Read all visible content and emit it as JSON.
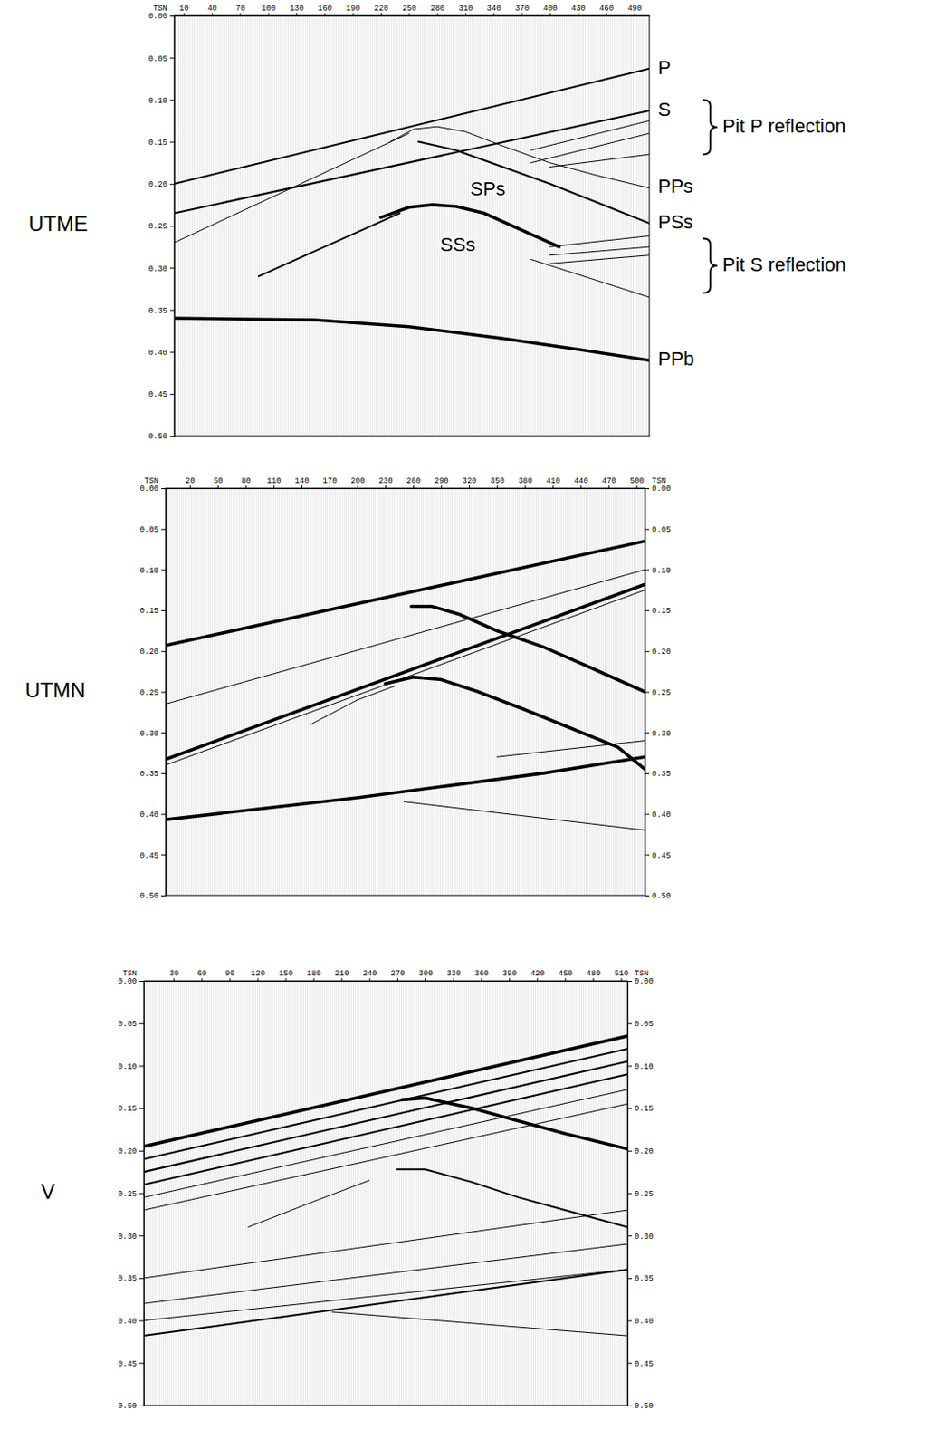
{
  "chart_data": [
    {
      "type": "line",
      "title": "UTME",
      "xlabel": "TSN",
      "color": "#000000",
      "xlim": [
        0,
        506
      ],
      "xticks": [
        10,
        40,
        70,
        100,
        130,
        160,
        190,
        220,
        250,
        280,
        310,
        340,
        370,
        400,
        430,
        460,
        490
      ],
      "ylim": [
        0,
        0.5
      ],
      "yticks": [
        {
          "value": 0,
          "label": "0.00"
        },
        {
          "value": 0.05,
          "label": "0.05"
        },
        {
          "value": 0.1,
          "label": "0.10"
        },
        {
          "value": 0.15,
          "label": "0.15"
        },
        {
          "value": 0.2,
          "label": "0.20"
        },
        {
          "value": 0.25,
          "label": "0.25"
        },
        {
          "value": 0.3,
          "label": "0.30"
        },
        {
          "value": 0.35,
          "label": "0.35"
        },
        {
          "value": 0.4,
          "label": "0.40"
        },
        {
          "value": 0.45,
          "label": "0.45"
        },
        {
          "value": 0.5,
          "label": "0.50"
        }
      ],
      "series": [
        {
          "name": "P",
          "line_style": "medium",
          "x": [
            0,
            506
          ],
          "values": [
            0.2,
            0.063
          ]
        },
        {
          "name": "S",
          "line_style": "medium",
          "x": [
            0,
            506
          ],
          "values": [
            0.235,
            0.113
          ]
        },
        {
          "line_style": "thin",
          "x": [
            380,
            506
          ],
          "values": [
            0.16,
            0.125
          ]
        },
        {
          "line_style": "thin",
          "x": [
            380,
            506
          ],
          "values": [
            0.175,
            0.14
          ]
        },
        {
          "line_style": "thin",
          "x": [
            400,
            506
          ],
          "values": [
            0.18,
            0.165
          ]
        },
        {
          "name": "PPs",
          "line_style": "thin",
          "x": [
            230,
            255,
            280,
            310,
            350,
            400,
            450,
            506
          ],
          "values": [
            0.15,
            0.135,
            0.132,
            0.138,
            0.155,
            0.175,
            0.19,
            0.205
          ]
        },
        {
          "name": "PSs",
          "line_style": "medium",
          "x": [
            260,
            300,
            350,
            400,
            450,
            506
          ],
          "values": [
            0.15,
            0.16,
            0.18,
            0.2,
            0.222,
            0.247
          ]
        },
        {
          "line_style": "thick",
          "x": [
            220,
            250,
            275,
            300,
            330,
            370,
            410
          ],
          "values": [
            0.24,
            0.228,
            0.225,
            0.227,
            0.235,
            0.255,
            0.275
          ]
        },
        {
          "line_style": "medium",
          "x": [
            90,
            150,
            200,
            240
          ],
          "values": [
            0.31,
            0.28,
            0.255,
            0.235
          ]
        },
        {
          "line_style": "thin",
          "x": [
            0,
            250
          ],
          "values": [
            0.27,
            0.14
          ]
        },
        {
          "line_style": "thin",
          "x": [
            380,
            506
          ],
          "values": [
            0.29,
            0.335
          ]
        },
        {
          "line_style": "thin",
          "x": [
            400,
            506
          ],
          "values": [
            0.275,
            0.262
          ]
        },
        {
          "line_style": "thin",
          "x": [
            400,
            506
          ],
          "values": [
            0.285,
            0.275
          ]
        },
        {
          "line_style": "thin",
          "x": [
            400,
            506
          ],
          "values": [
            0.295,
            0.285
          ]
        },
        {
          "name": "PPb",
          "line_style": "thick",
          "x": [
            0,
            150,
            250,
            350,
            430,
            506
          ],
          "values": [
            0.36,
            0.362,
            0.37,
            0.384,
            0.397,
            0.41
          ]
        }
      ],
      "annotations": [
        {
          "text": "SPs",
          "x": 334,
          "y": 0.208
        },
        {
          "text": "SSs",
          "x": 302,
          "y": 0.274
        }
      ],
      "brackets": [
        {
          "text": "Pit P reflection",
          "y": [
            0.1,
            0.165
          ]
        },
        {
          "text": "Pit S reflection",
          "y": [
            0.265,
            0.33
          ]
        }
      ]
    },
    {
      "type": "line",
      "title": "UTMN",
      "xlabel": "TSN",
      "color": "#000000",
      "xlim": [
        -6,
        509
      ],
      "xticks": [
        20,
        50,
        80,
        110,
        140,
        170,
        200,
        230,
        260,
        290,
        320,
        350,
        380,
        410,
        440,
        470,
        500
      ],
      "ylim": [
        0,
        0.5
      ],
      "yticks": [
        {
          "value": 0,
          "label": "0.00"
        },
        {
          "value": 0.05,
          "label": "0.05"
        },
        {
          "value": 0.1,
          "label": "0.10"
        },
        {
          "value": 0.15,
          "label": "0.15"
        },
        {
          "value": 0.2,
          "label": "0.20"
        },
        {
          "value": 0.25,
          "label": "0.25"
        },
        {
          "value": 0.3,
          "label": "0.30"
        },
        {
          "value": 0.35,
          "label": "0.35"
        },
        {
          "value": 0.4,
          "label": "0.40"
        },
        {
          "value": 0.45,
          "label": "0.45"
        },
        {
          "value": 0.5,
          "label": "0.50"
        }
      ],
      "y2lim": [
        0,
        0.5
      ],
      "y2ticks": [
        {
          "value": 0,
          "label": "0.00"
        },
        {
          "value": 0.05,
          "label": "0.05"
        },
        {
          "value": 0.1,
          "label": "0.10"
        },
        {
          "value": 0.15,
          "label": "0.15"
        },
        {
          "value": 0.2,
          "label": "0.20"
        },
        {
          "value": 0.25,
          "label": "0.25"
        },
        {
          "value": 0.3,
          "label": "0.30"
        },
        {
          "value": 0.35,
          "label": "0.35"
        },
        {
          "value": 0.4,
          "label": "0.40"
        },
        {
          "value": 0.45,
          "label": "0.45"
        },
        {
          "value": 0.5,
          "label": "0.50"
        }
      ],
      "series": [
        {
          "line_style": "thick",
          "x": [
            -6,
            509
          ],
          "values": [
            0.193,
            0.065
          ]
        },
        {
          "line_style": "thick",
          "x": [
            -6,
            509
          ],
          "values": [
            0.333,
            0.118
          ]
        },
        {
          "line_style": "thin",
          "x": [
            -6,
            509
          ],
          "values": [
            0.34,
            0.125
          ]
        },
        {
          "line_style": "thin",
          "x": [
            -6,
            509
          ],
          "values": [
            0.265,
            0.1
          ]
        },
        {
          "line_style": "thick",
          "x": [
            258,
            280,
            310,
            350,
            400,
            450,
            509
          ],
          "values": [
            0.145,
            0.145,
            0.155,
            0.175,
            0.195,
            0.22,
            0.25
          ]
        },
        {
          "line_style": "thick",
          "x": [
            230,
            260,
            290,
            330,
            380,
            430,
            480,
            509
          ],
          "values": [
            0.24,
            0.232,
            0.235,
            0.25,
            0.272,
            0.295,
            0.318,
            0.345
          ]
        },
        {
          "line_style": "thin",
          "x": [
            150,
            200,
            240
          ],
          "values": [
            0.29,
            0.26,
            0.243
          ]
        },
        {
          "line_style": "thick",
          "x": [
            -6,
            200,
            400,
            509
          ],
          "values": [
            0.407,
            0.38,
            0.35,
            0.33
          ]
        },
        {
          "line_style": "thin",
          "x": [
            350,
            509
          ],
          "values": [
            0.33,
            0.31
          ]
        },
        {
          "line_style": "thin",
          "x": [
            250,
            509
          ],
          "values": [
            0.385,
            0.42
          ]
        }
      ]
    },
    {
      "type": "line",
      "title": "V",
      "xlabel": "TSN",
      "color": "#000000",
      "xlim": [
        -2,
        517
      ],
      "xticks": [
        30,
        60,
        90,
        120,
        150,
        180,
        210,
        240,
        270,
        300,
        330,
        360,
        390,
        420,
        450,
        480,
        510
      ],
      "ylim": [
        0,
        0.5
      ],
      "yticks": [
        {
          "value": 0,
          "label": "0.00"
        },
        {
          "value": 0.05,
          "label": "0.05"
        },
        {
          "value": 0.1,
          "label": "0.10"
        },
        {
          "value": 0.15,
          "label": "0.15"
        },
        {
          "value": 0.2,
          "label": "0.20"
        },
        {
          "value": 0.25,
          "label": "0.25"
        },
        {
          "value": 0.3,
          "label": "0.30"
        },
        {
          "value": 0.35,
          "label": "0.35"
        },
        {
          "value": 0.4,
          "label": "0.40"
        },
        {
          "value": 0.45,
          "label": "0.45"
        },
        {
          "value": 0.5,
          "label": "0.50"
        }
      ],
      "y2lim": [
        0,
        0.5
      ],
      "y2ticks": [
        {
          "value": 0,
          "label": "0.00"
        },
        {
          "value": 0.05,
          "label": "0.05"
        },
        {
          "value": 0.1,
          "label": "0.10"
        },
        {
          "value": 0.15,
          "label": "0.15"
        },
        {
          "value": 0.2,
          "label": "0.20"
        },
        {
          "value": 0.25,
          "label": "0.25"
        },
        {
          "value": 0.3,
          "label": "0.30"
        },
        {
          "value": 0.35,
          "label": "0.35"
        },
        {
          "value": 0.4,
          "label": "0.40"
        },
        {
          "value": 0.45,
          "label": "0.45"
        },
        {
          "value": 0.5,
          "label": "0.50"
        }
      ],
      "series": [
        {
          "line_style": "thick",
          "x": [
            -2,
            517
          ],
          "values": [
            0.195,
            0.065
          ]
        },
        {
          "line_style": "medium",
          "x": [
            -2,
            517
          ],
          "values": [
            0.21,
            0.08
          ]
        },
        {
          "line_style": "medium",
          "x": [
            -2,
            517
          ],
          "values": [
            0.225,
            0.095
          ]
        },
        {
          "line_style": "medium",
          "x": [
            -2,
            517
          ],
          "values": [
            0.24,
            0.11
          ]
        },
        {
          "line_style": "thin",
          "x": [
            -2,
            517
          ],
          "values": [
            0.255,
            0.128
          ]
        },
        {
          "line_style": "thin",
          "x": [
            -2,
            517
          ],
          "values": [
            0.27,
            0.145
          ]
        },
        {
          "line_style": "thick",
          "x": [
            275,
            300,
            350,
            400,
            450,
            517
          ],
          "values": [
            0.14,
            0.138,
            0.15,
            0.165,
            0.18,
            0.198
          ]
        },
        {
          "line_style": "medium",
          "x": [
            270,
            300,
            350,
            400,
            450,
            517
          ],
          "values": [
            0.222,
            0.222,
            0.237,
            0.255,
            0.27,
            0.29
          ]
        },
        {
          "line_style": "thin",
          "x": [
            110,
            180,
            240
          ],
          "values": [
            0.29,
            0.26,
            0.235
          ]
        },
        {
          "line_style": "thin",
          "x": [
            -2,
            517
          ],
          "values": [
            0.35,
            0.27
          ]
        },
        {
          "line_style": "thin",
          "x": [
            -2,
            517
          ],
          "values": [
            0.38,
            0.31
          ]
        },
        {
          "line_style": "thin",
          "x": [
            -2,
            517
          ],
          "values": [
            0.4,
            0.34
          ]
        },
        {
          "line_style": "medium",
          "x": [
            -2,
            517
          ],
          "values": [
            0.418,
            0.34
          ]
        },
        {
          "line_style": "thin",
          "x": [
            200,
            517
          ],
          "values": [
            0.39,
            0.418
          ]
        }
      ]
    }
  ]
}
